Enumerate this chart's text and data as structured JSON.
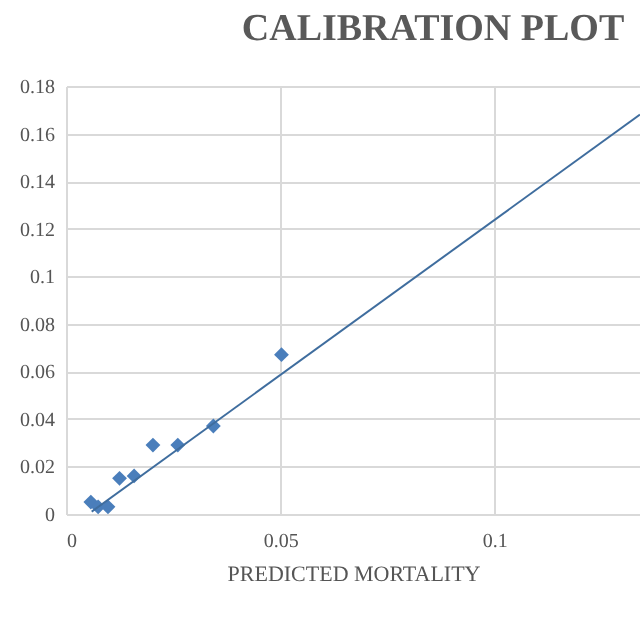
{
  "chart_data": {
    "type": "scatter",
    "title": "CALIBRATION PLOT",
    "xlabel": "PREDICTED MORTALITY",
    "xlim": [
      0,
      0.134
    ],
    "xticks": [
      0,
      0.05,
      0.1
    ],
    "ylim": [
      0,
      0.18
    ],
    "yticks": [
      0,
      0.02,
      0.04,
      0.06,
      0.08,
      0.1,
      0.12,
      0.14,
      0.16,
      0.18
    ],
    "grid": true,
    "x": [
      0.0058,
      0.0075,
      0.0098,
      0.0125,
      0.0159,
      0.0203,
      0.0261,
      0.0344,
      0.0503
    ],
    "series": [
      {
        "color": "#4a7ebb",
        "marker": "diamond",
        "values": [
          0.005,
          0.003,
          0.003,
          0.015,
          0.016,
          0.029,
          0.029,
          0.037,
          0.067
        ]
      },
      {
        "type": "line",
        "marker": "none",
        "color": "#3f6d9e",
        "x": [
          0.006,
          0.134
        ],
        "values": [
          0.001,
          0.168
        ]
      }
    ]
  }
}
